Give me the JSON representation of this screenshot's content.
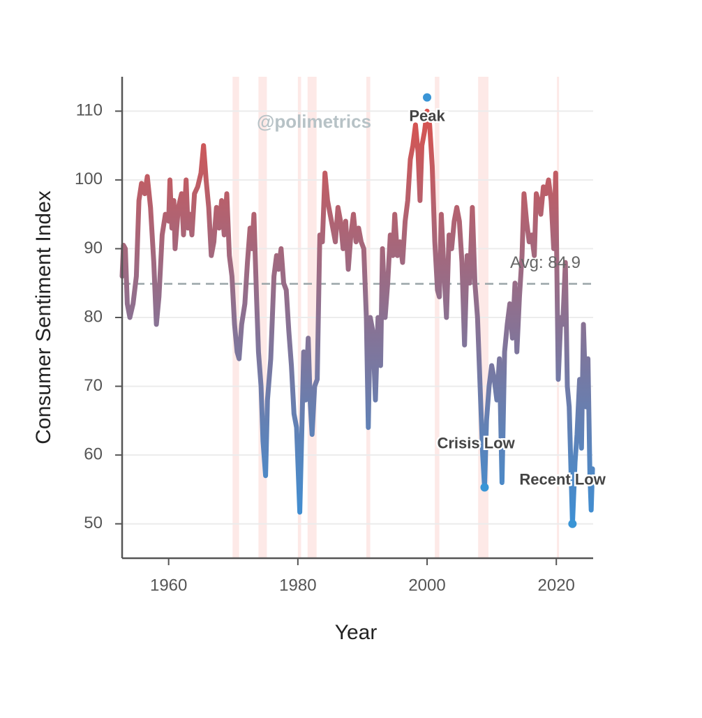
{
  "chart_data": {
    "type": "line",
    "xlabel": "Year",
    "ylabel": "Consumer Sentiment Index",
    "watermark": "@polimetrics",
    "xlim": [
      1952.8,
      2025.7
    ],
    "ylim": [
      45,
      115
    ],
    "xticks": [
      1960,
      1980,
      2000,
      2020
    ],
    "yticks": [
      50,
      60,
      70,
      80,
      90,
      100,
      110
    ],
    "grid": true,
    "color_high": "#d9534f",
    "color_low": "#3d8fd4",
    "reference_line": {
      "value": 84.9,
      "label": "Avg: 84.9",
      "color": "#9aa5a8"
    },
    "shaded_periods": [
      [
        1969.9,
        1970.9
      ],
      [
        1973.9,
        1975.2
      ],
      [
        1980.0,
        1980.5
      ],
      [
        1981.5,
        1982.9
      ],
      [
        1990.6,
        1991.2
      ],
      [
        2001.2,
        2001.9
      ],
      [
        2007.9,
        2009.5
      ],
      [
        2020.1,
        2020.3
      ]
    ],
    "shade_color": "#fde3e1",
    "annotations": [
      {
        "text": "Peak",
        "x": 2000,
        "y": 112
      },
      {
        "text": "Crisis Low",
        "x": 2008.9,
        "y": 55.3
      },
      {
        "text": "Recent Low",
        "x": 2022.5,
        "y": 50
      }
    ],
    "annotation_color": "#3a95d6",
    "x": [
      1952.8,
      1953.0,
      1953.3,
      1953.6,
      1954.0,
      1954.5,
      1955.0,
      1955.4,
      1955.8,
      1956.3,
      1956.7,
      1957.2,
      1957.7,
      1958.1,
      1958.5,
      1959.0,
      1959.5,
      1960.0,
      1960.2,
      1960.5,
      1960.8,
      1961.0,
      1961.5,
      1962.0,
      1962.3,
      1962.7,
      1963.0,
      1963.3,
      1963.6,
      1964.0,
      1964.5,
      1965.0,
      1965.4,
      1965.8,
      1966.2,
      1966.6,
      1967.0,
      1967.4,
      1967.8,
      1968.2,
      1968.6,
      1969.0,
      1969.4,
      1969.8,
      1970.2,
      1970.6,
      1970.9,
      1971.3,
      1971.8,
      1972.2,
      1972.6,
      1972.9,
      1973.2,
      1973.6,
      1973.9,
      1974.3,
      1974.6,
      1975.0,
      1975.3,
      1975.8,
      1976.3,
      1976.7,
      1977.0,
      1977.4,
      1977.8,
      1978.2,
      1978.6,
      1979.0,
      1979.4,
      1979.8,
      1980.3,
      1980.6,
      1980.9,
      1981.2,
      1981.6,
      1981.9,
      1982.2,
      1982.6,
      1983.0,
      1983.4,
      1983.8,
      1984.2,
      1984.6,
      1985.0,
      1985.4,
      1985.8,
      1986.2,
      1986.6,
      1987.0,
      1987.4,
      1987.8,
      1988.2,
      1988.6,
      1989.0,
      1989.4,
      1989.8,
      1990.2,
      1990.6,
      1990.9,
      1991.2,
      1991.6,
      1992.0,
      1992.4,
      1992.8,
      1993.1,
      1993.5,
      1993.9,
      1994.3,
      1994.7,
      1995.0,
      1995.4,
      1995.8,
      1996.2,
      1996.6,
      1997.0,
      1997.4,
      1997.8,
      1998.2,
      1998.6,
      1998.9,
      1999.2,
      1999.6,
      2000.0,
      2000.4,
      2000.8,
      2001.2,
      2001.6,
      2001.9,
      2002.2,
      2002.6,
      2003.0,
      2003.4,
      2003.8,
      2004.2,
      2004.6,
      2005.0,
      2005.4,
      2005.8,
      2006.2,
      2006.6,
      2007.0,
      2007.4,
      2007.8,
      2008.2,
      2008.6,
      2008.9,
      2009.2,
      2009.6,
      2010.0,
      2010.4,
      2010.8,
      2011.2,
      2011.6,
      2012.0,
      2012.4,
      2012.8,
      2013.2,
      2013.6,
      2013.9,
      2014.3,
      2014.7,
      2015.0,
      2015.4,
      2015.8,
      2016.2,
      2016.6,
      2016.9,
      2017.2,
      2017.6,
      2018.0,
      2018.4,
      2018.8,
      2019.2,
      2019.6,
      2019.9,
      2020.3,
      2020.7,
      2021.0,
      2021.4,
      2021.7,
      2022.0,
      2022.5,
      2022.9,
      2023.2,
      2023.6,
      2023.9,
      2024.2,
      2024.6,
      2024.9,
      2025.2,
      2025.4,
      2025.6
    ],
    "values": [
      86,
      90.5,
      90,
      82,
      80,
      82,
      86,
      97,
      99.5,
      98,
      100.5,
      96,
      88,
      79,
      83,
      92,
      95,
      94,
      100,
      93,
      97,
      90,
      96,
      98,
      92,
      100,
      93,
      95,
      92,
      98,
      99,
      101,
      105,
      100,
      96,
      89,
      91,
      96,
      93,
      97,
      92,
      98,
      89,
      86,
      79,
      75,
      74,
      79,
      82,
      88,
      93,
      90,
      95,
      83,
      75,
      70,
      62,
      57,
      68,
      74,
      86,
      89,
      87,
      90,
      85,
      84,
      78,
      73,
      66,
      64,
      51.7,
      63,
      75,
      68,
      77,
      68,
      63,
      70,
      71,
      92,
      91,
      101,
      97,
      95,
      93,
      91,
      96,
      94,
      90,
      94,
      87,
      92,
      95,
      91,
      93,
      91,
      90,
      80,
      64,
      80,
      78,
      68,
      80,
      73,
      90,
      80,
      85,
      92,
      89,
      95,
      89,
      91,
      88,
      94,
      97,
      103,
      105,
      108,
      104,
      97,
      105,
      107,
      110,
      108,
      102,
      91,
      84,
      83,
      95,
      87,
      80,
      92,
      90,
      94,
      96,
      94,
      88,
      76,
      89,
      85,
      96,
      85,
      80,
      70,
      60,
      55.3,
      65,
      70,
      73,
      71,
      68,
      74,
      56,
      75,
      79,
      82,
      77,
      85,
      75,
      83,
      89,
      98,
      94,
      91,
      92,
      89,
      98,
      97,
      95,
      99,
      98,
      100,
      97,
      90,
      101,
      71,
      80,
      79,
      88,
      70,
      67,
      50,
      59,
      63,
      71,
      61,
      79,
      67,
      74,
      57,
      52,
      58
    ]
  }
}
